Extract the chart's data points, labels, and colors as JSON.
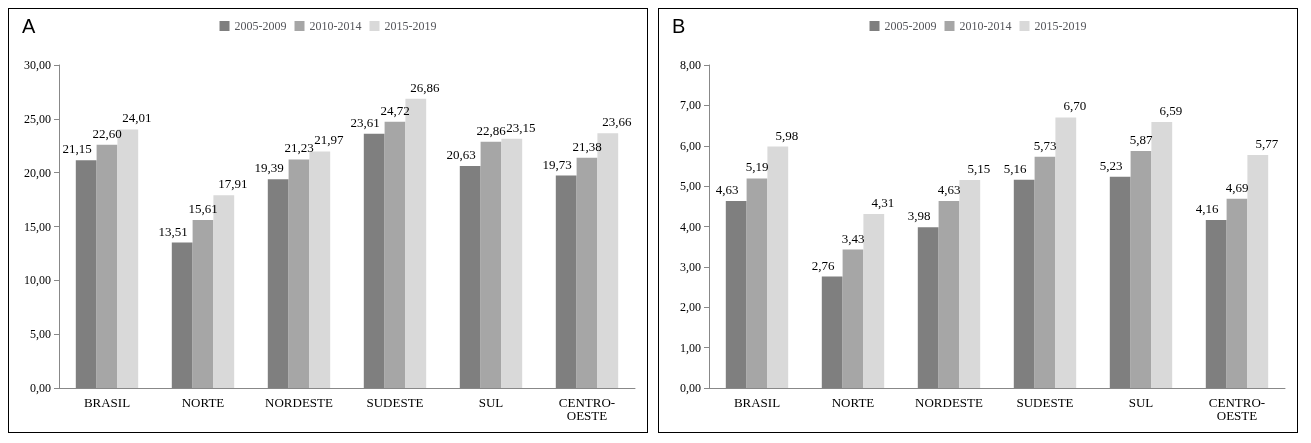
{
  "chart_data": [
    {
      "type": "bar",
      "title": "A",
      "categories": [
        "BRASIL",
        "NORTE",
        "NORDESTE",
        "SUDESTE",
        "SUL",
        "CENTRO-OESTE"
      ],
      "series": [
        {
          "name": "2005-2009",
          "color": "#7f7f7f",
          "values": [
            21.15,
            13.51,
            19.39,
            23.61,
            20.63,
            19.73
          ],
          "value_labels": [
            "21,15",
            "13,51",
            "19,39",
            "23,61",
            "20,63",
            "19,73"
          ]
        },
        {
          "name": "2010-2014",
          "color": "#a6a6a6",
          "values": [
            22.6,
            15.61,
            21.23,
            24.72,
            22.86,
            21.38
          ],
          "value_labels": [
            "22,60",
            "15,61",
            "21,23",
            "24,72",
            "22,86",
            "21,38"
          ]
        },
        {
          "name": "2015-2019",
          "color": "#d9d9d9",
          "values": [
            24.01,
            17.91,
            21.97,
            26.86,
            23.15,
            23.66
          ],
          "value_labels": [
            "24,01",
            "17,91",
            "21,97",
            "26,86",
            "23,15",
            "23,66"
          ]
        }
      ],
      "ylim": [
        0,
        30
      ],
      "yticks": [
        {
          "value": 0,
          "label": "0,00"
        },
        {
          "value": 5,
          "label": "5,00"
        },
        {
          "value": 10,
          "label": "10,00"
        },
        {
          "value": 15,
          "label": "15,00"
        },
        {
          "value": 20,
          "label": "20,00"
        },
        {
          "value": 25,
          "label": "25,00"
        },
        {
          "value": 30,
          "label": "30,00"
        }
      ],
      "grid": false,
      "legend": "top"
    },
    {
      "type": "bar",
      "title": "B",
      "categories": [
        "BRASIL",
        "NORTE",
        "NORDESTE",
        "SUDESTE",
        "SUL",
        "CENTRO-OESTE"
      ],
      "series": [
        {
          "name": "2005-2009",
          "color": "#7f7f7f",
          "values": [
            4.63,
            2.76,
            3.98,
            5.16,
            5.23,
            4.16
          ],
          "value_labels": [
            "4,63",
            "2,76",
            "3,98",
            "5,16",
            "5,23",
            "4,16"
          ]
        },
        {
          "name": "2010-2014",
          "color": "#a6a6a6",
          "values": [
            5.19,
            3.43,
            4.63,
            5.73,
            5.87,
            4.69
          ],
          "value_labels": [
            "5,19",
            "3,43",
            "4,63",
            "5,73",
            "5,87",
            "4,69"
          ]
        },
        {
          "name": "2015-2019",
          "color": "#d9d9d9",
          "values": [
            5.98,
            4.31,
            5.15,
            6.7,
            6.59,
            5.77
          ],
          "value_labels": [
            "5,98",
            "4,31",
            "5,15",
            "6,70",
            "6,59",
            "5,77"
          ]
        }
      ],
      "ylim": [
        0,
        8
      ],
      "yticks": [
        {
          "value": 0,
          "label": "0,00"
        },
        {
          "value": 1,
          "label": "1,00"
        },
        {
          "value": 2,
          "label": "2,00"
        },
        {
          "value": 3,
          "label": "3,00"
        },
        {
          "value": 4,
          "label": "4,00"
        },
        {
          "value": 5,
          "label": "5,00"
        },
        {
          "value": 6,
          "label": "6,00"
        },
        {
          "value": 7,
          "label": "7,00"
        },
        {
          "value": 8,
          "label": "8,00"
        }
      ],
      "grid": false,
      "legend": "top"
    }
  ]
}
